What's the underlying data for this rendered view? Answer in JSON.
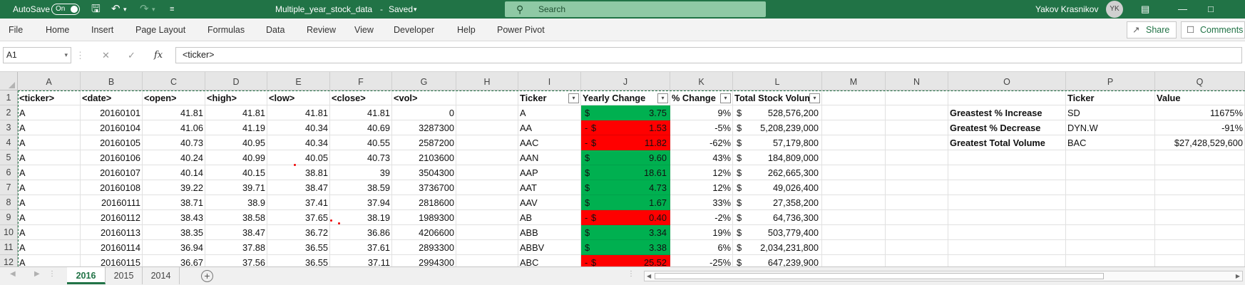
{
  "titlebar": {
    "autosave_label": "AutoSave",
    "toggle_state": "On",
    "filename": "Multiple_year_stock_data",
    "save_status": "Saved",
    "search_placeholder": "Search",
    "user_name": "Yakov Krasnikov",
    "user_initials": "YK",
    "accent_color": "#217346"
  },
  "ribbon": {
    "tabs": [
      "File",
      "Home",
      "Insert",
      "Page Layout",
      "Formulas",
      "Data",
      "Review",
      "View",
      "Developer",
      "Help",
      "Power Pivot"
    ],
    "share_label": "Share",
    "comments_label": "Comments"
  },
  "formula_bar": {
    "name_box": "A1",
    "fx_label": "fx",
    "content": "<ticker>"
  },
  "columns": [
    "A",
    "B",
    "C",
    "D",
    "E",
    "F",
    "G",
    "H",
    "I",
    "J",
    "K",
    "L",
    "M",
    "N",
    "O",
    "P",
    "Q"
  ],
  "row_numbers": [
    "1",
    "2",
    "3",
    "4",
    "5",
    "6",
    "7",
    "8",
    "9",
    "10",
    "11",
    "12"
  ],
  "raw_data": {
    "headers": [
      "<ticker>",
      "<date>",
      "<open>",
      "<high>",
      "<low>",
      "<close>",
      "<vol>"
    ],
    "rows": [
      [
        "A",
        "20160101",
        "41.81",
        "41.81",
        "41.81",
        "41.81",
        "0"
      ],
      [
        "A",
        "20160104",
        "41.06",
        "41.19",
        "40.34",
        "40.69",
        "3287300"
      ],
      [
        "A",
        "20160105",
        "40.73",
        "40.95",
        "40.34",
        "40.55",
        "2587200"
      ],
      [
        "A",
        "20160106",
        "40.24",
        "40.99",
        "40.05",
        "40.73",
        "2103600"
      ],
      [
        "A",
        "20160107",
        "40.14",
        "40.15",
        "38.81",
        "39",
        "3504300"
      ],
      [
        "A",
        "20160108",
        "39.22",
        "39.71",
        "38.47",
        "38.59",
        "3736700"
      ],
      [
        "A",
        "20160111",
        "38.71",
        "38.9",
        "37.41",
        "37.94",
        "2818600"
      ],
      [
        "A",
        "20160112",
        "38.43",
        "38.58",
        "37.65",
        "38.19",
        "1989300"
      ],
      [
        "A",
        "20160113",
        "38.35",
        "38.47",
        "36.72",
        "36.86",
        "4206600"
      ],
      [
        "A",
        "20160114",
        "36.94",
        "37.88",
        "36.55",
        "37.61",
        "2893300"
      ],
      [
        "A",
        "20160115",
        "36.67",
        "37.56",
        "36.55",
        "37.11",
        "2994300"
      ]
    ]
  },
  "summary_table": {
    "headers": [
      "Ticker",
      "Yearly Change",
      "% Change",
      "Total Stock Volume"
    ],
    "currency_symbol": "$",
    "negative_prefix": "-",
    "positive_color": "#00b050",
    "negative_color": "#ff0000",
    "rows": [
      {
        "ticker": "A",
        "change": "3.75",
        "negative": false,
        "pct": "9%",
        "volume": "528,576,200"
      },
      {
        "ticker": "AA",
        "change": "1.53",
        "negative": true,
        "pct": "-5%",
        "volume": "5,208,239,000"
      },
      {
        "ticker": "AAC",
        "change": "11.82",
        "negative": true,
        "pct": "-62%",
        "volume": "57,179,800"
      },
      {
        "ticker": "AAN",
        "change": "9.60",
        "negative": false,
        "pct": "43%",
        "volume": "184,809,000"
      },
      {
        "ticker": "AAP",
        "change": "18.61",
        "negative": false,
        "pct": "12%",
        "volume": "262,665,300"
      },
      {
        "ticker": "AAT",
        "change": "4.73",
        "negative": false,
        "pct": "12%",
        "volume": "49,026,400"
      },
      {
        "ticker": "AAV",
        "change": "1.67",
        "negative": false,
        "pct": "33%",
        "volume": "27,358,200"
      },
      {
        "ticker": "AB",
        "change": "0.40",
        "negative": true,
        "pct": "-2%",
        "volume": "64,736,300"
      },
      {
        "ticker": "ABB",
        "change": "3.34",
        "negative": false,
        "pct": "19%",
        "volume": "503,779,400"
      },
      {
        "ticker": "ABBV",
        "change": "3.38",
        "negative": false,
        "pct": "6%",
        "volume": "2,034,231,800"
      },
      {
        "ticker": "ABC",
        "change": "25.52",
        "negative": true,
        "pct": "-25%",
        "volume": "647,239,900"
      }
    ]
  },
  "greatest_table": {
    "headers": [
      "Ticker",
      "Value"
    ],
    "rows": [
      {
        "label": "Greastest % Increase",
        "ticker": "SD",
        "value": "11675%"
      },
      {
        "label": "Greatest % Decrease",
        "ticker": "DYN.W",
        "value": "-91%"
      },
      {
        "label": "Greatest Total Volume",
        "ticker": "BAC",
        "value": "$27,428,529,600"
      }
    ]
  },
  "sheet_tabs": [
    {
      "label": "2016",
      "active": true
    },
    {
      "label": "2015",
      "active": false
    },
    {
      "label": "2014",
      "active": false
    }
  ]
}
